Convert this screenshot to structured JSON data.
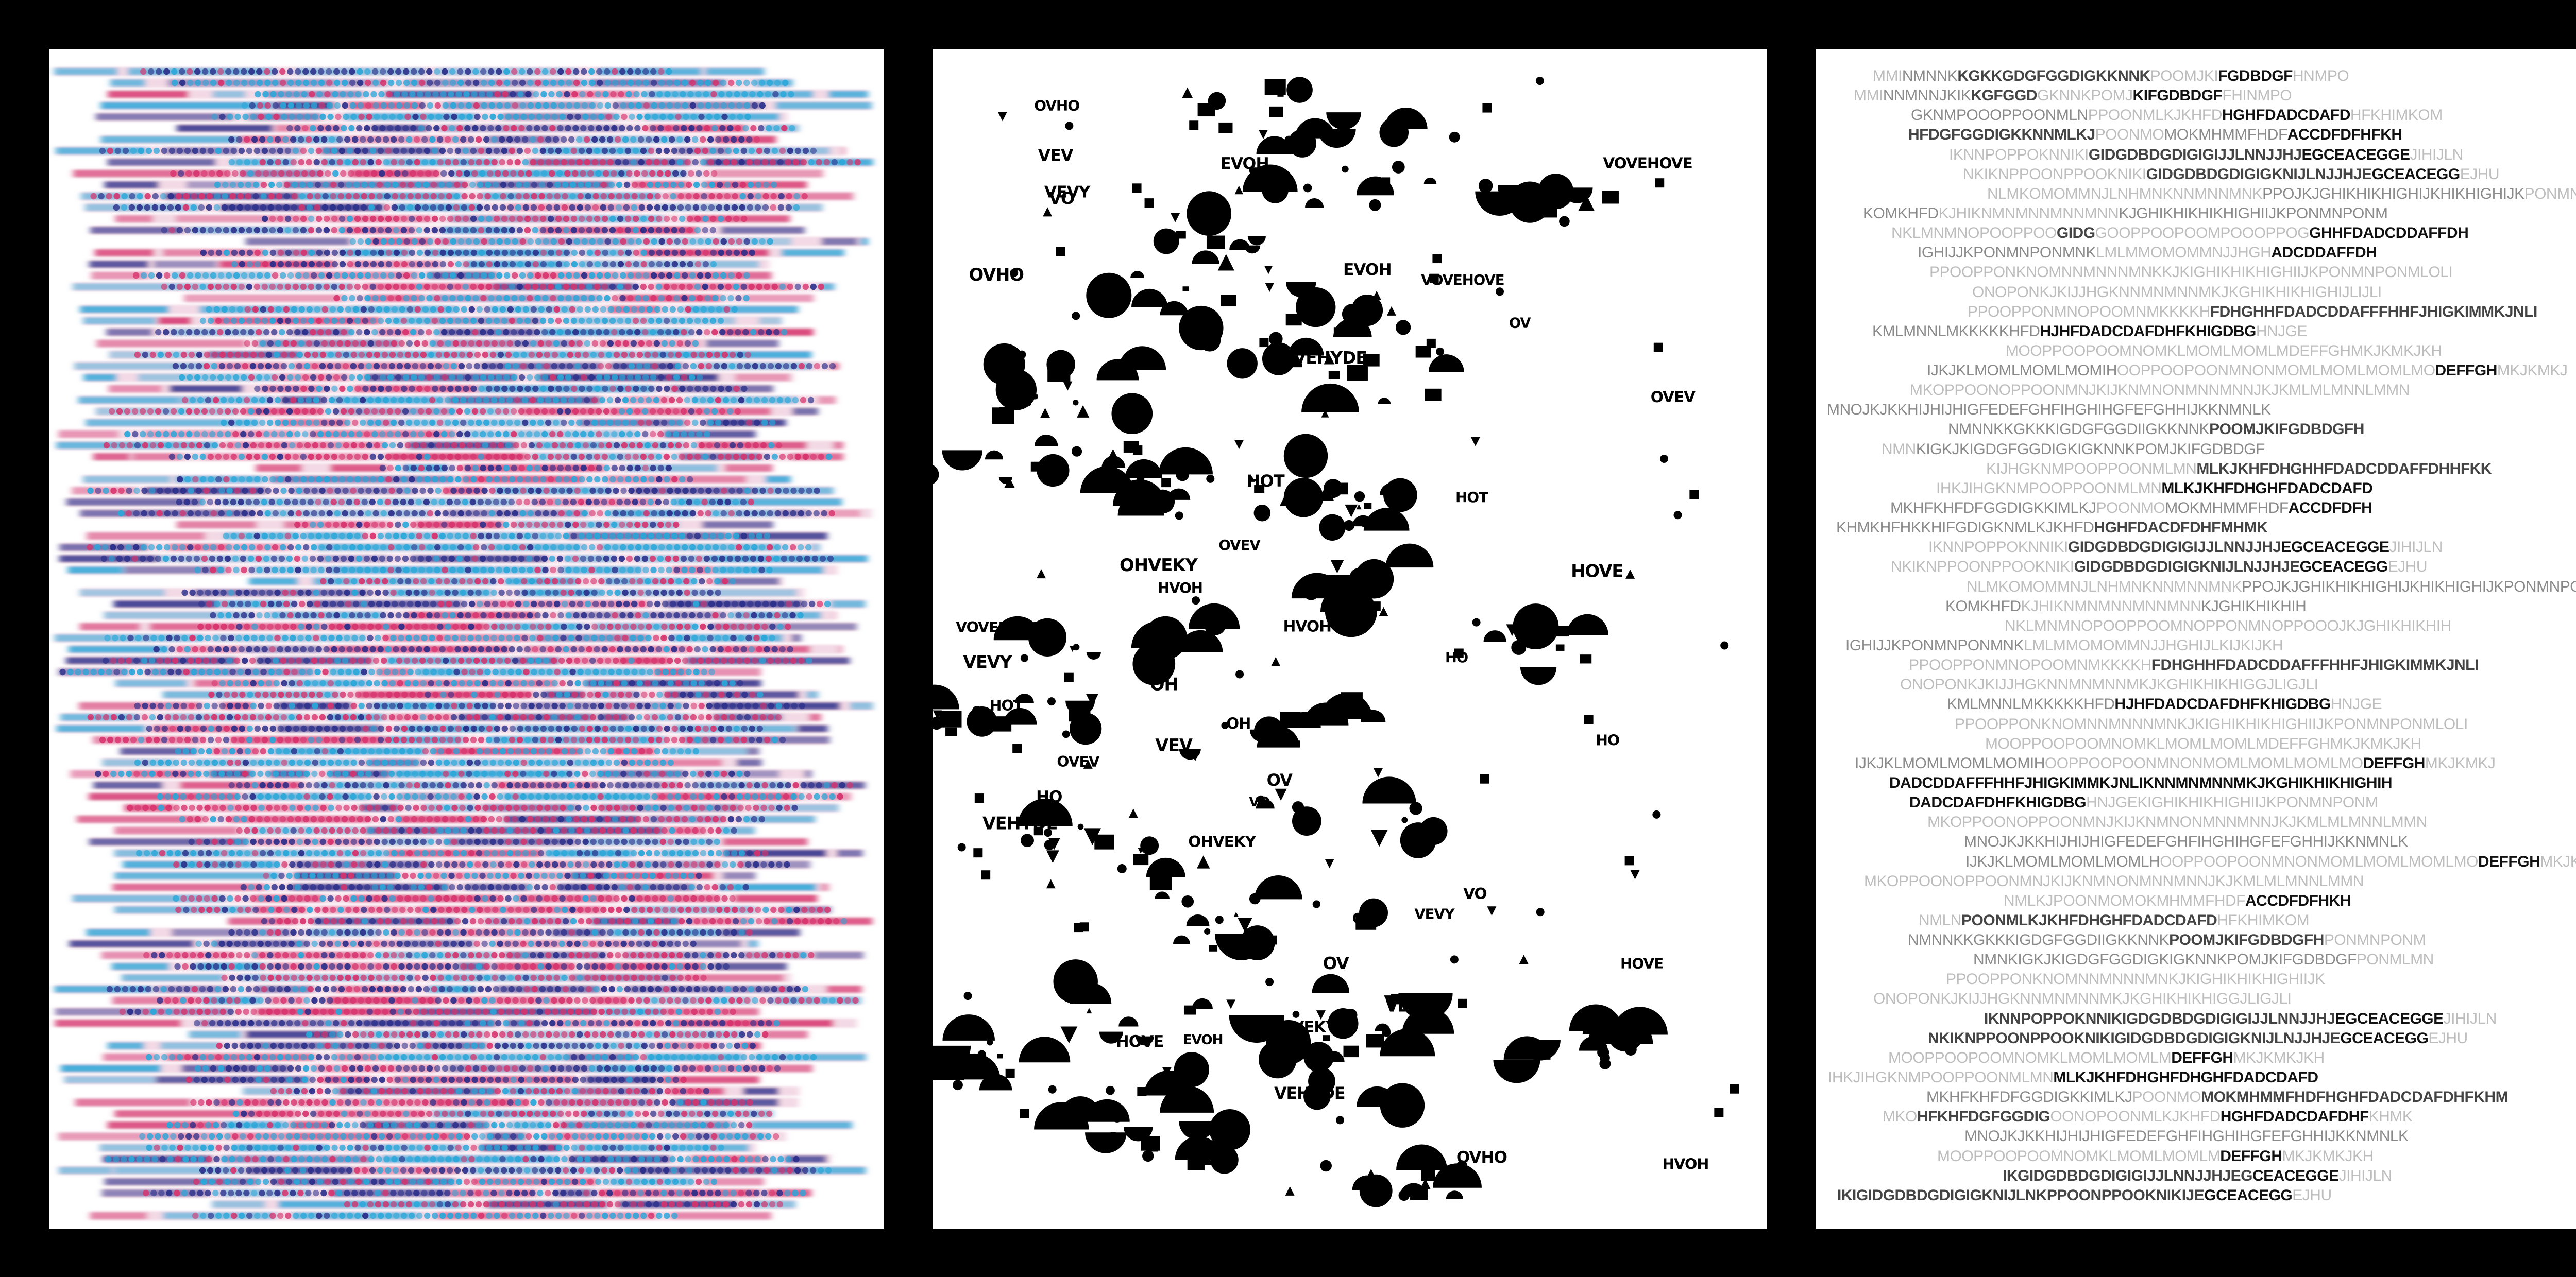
{
  "artwork": {
    "background_color": "#000000",
    "panel_color": "#ffffff",
    "panels": [
      {
        "id": "stripes",
        "description_colors": [
          "#2b2f8a",
          "#d7336d",
          "#2aa7d9",
          "#e9b9cf"
        ]
      },
      {
        "id": "shapes",
        "ink_color": "#000000",
        "glyph_fragments": [
          "OHVEKY",
          "VEV",
          "HOT",
          "HO",
          "OH",
          "VOVEHOVE",
          "OVHO",
          "OV",
          "VO",
          "HOVE",
          "VEHYDE",
          "OVEV",
          "HVOH",
          "VEVY",
          "EVOH"
        ]
      },
      {
        "id": "letters",
        "ink_color": "#1a1a1a",
        "lines": [
          [
            {
              "t": "MMI",
              "w": "light"
            },
            {
              "t": "NMNNK",
              "w": "mid"
            },
            {
              "t": "KGKKGDGFGGDIGKKNNK",
              "w": "semi"
            },
            {
              "t": "POOMJKI",
              "w": "light"
            },
            {
              "t": "FGDBDGF",
              "w": "bold"
            },
            {
              "t": "HNMPO",
              "w": "light"
            }
          ],
          [
            {
              "t": "MMI",
              "w": "light"
            },
            {
              "t": "NNMNNJKIK",
              "w": "mid"
            },
            {
              "t": "KGFGGD",
              "w": "semi"
            },
            {
              "t": "GKNNKPOMJ",
              "w": "light"
            },
            {
              "t": "KIFGDBDGF",
              "w": "bold"
            },
            {
              "t": "FHINMPO",
              "w": "light"
            }
          ],
          [
            {
              "t": "GKNMPOOOPPOONMLN",
              "w": "mid"
            },
            {
              "t": "PPOONMLKJKHFD",
              "w": "light"
            },
            {
              "t": "HGHFDADCDAFD",
              "w": "bold"
            },
            {
              "t": "HFKHIMKOM",
              "w": "light"
            }
          ],
          [
            {
              "t": "HFDGFGGDIGKKNNMLKJ",
              "w": "semi"
            },
            {
              "t": "POONMO",
              "w": "light"
            },
            {
              "t": "MOKMHMMFHDF",
              "w": "mid"
            },
            {
              "t": "ACCDFDFHFKH",
              "w": "bold"
            }
          ],
          [
            {
              "t": "IKNNPOPPOKNNIKI",
              "w": "light"
            },
            {
              "t": "GIDGDBDGDIGIGIJJLNNJJHJ",
              "w": "semi"
            },
            {
              "t": "EGCEACEGGE",
              "w": "bold"
            },
            {
              "t": "JIHIJLN",
              "w": "light"
            }
          ],
          [
            {
              "t": "NKIKNPPOONPPOOKNIKI",
              "w": "light"
            },
            {
              "t": "GIDGDBDGDIGIGKNIJLNJJHJE",
              "w": "semi"
            },
            {
              "t": "GCEACEGG",
              "w": "bold"
            },
            {
              "t": "EJHU",
              "w": "light"
            }
          ],
          [
            {
              "t": "NLMKOMOMMNJLNHMNKNNMNNMNK",
              "w": "light"
            },
            {
              "t": "PPOJKJGHIKHIKHIGHIJKHIKHIGHIJK",
              "w": "mid"
            },
            {
              "t": "PONMNPONM",
              "w": "light"
            }
          ],
          [
            {
              "t": "KOMKHFD",
              "w": "mid"
            },
            {
              "t": "KJHI",
              "w": "light"
            },
            {
              "t": "KNMNMNNMNNMNN",
              "w": "light"
            },
            {
              "t": "KJGHIKHIKHIKHIGHIIJKPONMNPONM",
              "w": "mid"
            }
          ],
          [
            {
              "t": "NKLMNMNOPOOPPOO",
              "w": "light"
            },
            {
              "t": "GIDG",
              "w": "semi"
            },
            {
              "t": "GOOPPOOPOOMPOOOPPOG",
              "w": "light"
            },
            {
              "t": "GHHFDADCDDAFFDH",
              "w": "bold"
            }
          ],
          [
            {
              "t": "IGHIJJKPONMNPONMNK",
              "w": "mid"
            },
            {
              "t": "LMLMMOMOMMNJJHGH",
              "w": "light"
            },
            {
              "t": "ADCDDAFFDH",
              "w": "bold"
            }
          ],
          [
            {
              "t": "PPOOPPONKNOMNNMNNNMNK",
              "w": "light"
            },
            {
              "t": "KJKIGHIKHIKHIGHIIJKPONMNPONMLOLI",
              "w": "light"
            }
          ],
          [
            {
              "t": "ONOPONKJKIJJHG",
              "w": "light"
            },
            {
              "t": "KNNMNMNNMKJKGHIKHIKHIGHIJLIJLI",
              "w": "light"
            }
          ],
          [
            {
              "t": "PPOOPPONMNOPOOMNMKKKKH",
              "w": "light"
            },
            {
              "t": "FDHGHHFDADCDDAFFFHHFJHIGKIMMKJNLI",
              "w": "semi"
            }
          ],
          [
            {
              "t": "KMLMNNLMKKKKKHFD",
              "w": "mid"
            },
            {
              "t": "HJHFDADCDAFDHFKHIGDBG",
              "w": "bold"
            },
            {
              "t": "HNJGE",
              "w": "light"
            }
          ],
          [
            {
              "t": "MOOPPOOPOOMNOMKLMOMLMOMLMDEFFGHMKJKMKJKH",
              "w": "light"
            }
          ],
          [
            {
              "t": "IJKJKLMOMLMOMLMOMIH",
              "w": "mid"
            },
            {
              "t": "OOPPOOPOONMNONMOMLMOMLMOMLMO",
              "w": "light"
            },
            {
              "t": "DEFFGH",
              "w": "bold"
            },
            {
              "t": "MKJKMKJ",
              "w": "light"
            }
          ],
          [
            {
              "t": "MKOPPOONOPPOONMNJKIJKNMNONMNNMNNJKJKMLMLMNNLMMN",
              "w": "light"
            }
          ],
          [
            {
              "t": "MNOJKJKK",
              "w": "mid"
            },
            {
              "t": "HIJHIJHIGFEDEFGHFIHGHIHGFEFGHHIJKKNMNLK",
              "w": "mid"
            }
          ],
          [
            {
              "t": "NMNNKKGKKKIGDGFGGDIIGKKNNK",
              "w": "mid"
            },
            {
              "t": "POOMJKIFGDBDGFH",
              "w": "semi"
            }
          ],
          [
            {
              "t": "NMN",
              "w": "light"
            },
            {
              "t": "KIGKJKIGDGFGGDIGKIGKNNKPOMJKIFGDBDGF",
              "w": "mid"
            }
          ],
          [
            {
              "t": "KIJHGKNMPOOPPOONMLMN",
              "w": "light"
            },
            {
              "t": "MLKJKHFDHGHHFDADCDDAFFDHHFKK",
              "w": "semi"
            }
          ],
          [
            {
              "t": "IHKJIHGKNMPOOPPOONMLMN",
              "w": "light"
            },
            {
              "t": "MLKJKHFDHGHFDADCDAFD",
              "w": "bold"
            }
          ],
          [
            {
              "t": "MKHFKHFDFGGDIGKKIMLKJ",
              "w": "mid"
            },
            {
              "t": "POONMO",
              "w": "light"
            },
            {
              "t": "MOKMHMMFHDF",
              "w": "mid"
            },
            {
              "t": "ACCDFDFH",
              "w": "bold"
            }
          ],
          [
            {
              "t": "KHMKHFHKKHIFGDIGKNMLKJKHFD",
              "w": "mid"
            },
            {
              "t": "HGHFDACDFDHFMHMK",
              "w": "semi"
            }
          ],
          [
            {
              "t": "IKNNPOPPOKNNIKI",
              "w": "light"
            },
            {
              "t": "GIDGDBDGDIGIGIJJLNNJJHJ",
              "w": "semi"
            },
            {
              "t": "EGCEACEGGE",
              "w": "bold"
            },
            {
              "t": "JIHIJLN",
              "w": "light"
            }
          ],
          [
            {
              "t": "NKIKNPPOONPPOOKNIKI",
              "w": "light"
            },
            {
              "t": "GIDGDBDGDIGIGKNIJLNJJHJE",
              "w": "semi"
            },
            {
              "t": "GCEACEGG",
              "w": "bold"
            },
            {
              "t": "EJHU",
              "w": "light"
            }
          ],
          [
            {
              "t": "NLMKOMOMMNJLNHMNKNNMNNMNK",
              "w": "light"
            },
            {
              "t": "PPOJKJGHIKHIKHIGHIJKHIKHIGHIJKPONMNPONM",
              "w": "mid"
            }
          ],
          [
            {
              "t": "KOMKHFD",
              "w": "mid"
            },
            {
              "t": "KJHI",
              "w": "light"
            },
            {
              "t": "KNMNMNNMNNMNN",
              "w": "light"
            },
            {
              "t": "KJGHIKHIKHIH",
              "w": "mid"
            }
          ],
          [
            {
              "t": "NKLMNMNOPOOPPOOMNOPPONMNOPPOOOJKJGHIKHIKHIH",
              "w": "light"
            }
          ],
          [
            {
              "t": "IGHIJJKPONMNPONMNK",
              "w": "mid"
            },
            {
              "t": "LMLMMOMOMMNJJHGHIJLKIJKIJKH",
              "w": "light"
            }
          ],
          [
            {
              "t": "PPOOPPONMNOPOOMNMKKKKH",
              "w": "light"
            },
            {
              "t": "FDHGHHFDADCDDAFFFHHFJHIGKIMMKJNLI",
              "w": "semi"
            }
          ],
          [
            {
              "t": "ONOPONKJKIJJHG",
              "w": "light"
            },
            {
              "t": "KNNMNMNNMKJKGHIKHIKHIG",
              "w": "light"
            },
            {
              "t": "GJLIGJLI",
              "w": "light"
            }
          ],
          [
            {
              "t": "KMLMNNLMKKKKKHFD",
              "w": "mid"
            },
            {
              "t": "HJHFDADCDAFDHFKHIGDBG",
              "w": "bold"
            },
            {
              "t": "HNJGE",
              "w": "light"
            }
          ],
          [
            {
              "t": "PPOOPPONKNOMNNMNNNMN",
              "w": "light"
            },
            {
              "t": "KJKIGHIKHIKHIGHIIJKPONMNPONMLOLI",
              "w": "light"
            }
          ],
          [
            {
              "t": "MOOPPOOPOOMNOMKLMOMLMOMLMDEFFGHMKJKMKJKH",
              "w": "light"
            }
          ],
          [
            {
              "t": "IJKJKLMOMLMOMLMOMIH",
              "w": "mid"
            },
            {
              "t": "OOPPOOPOONMNONMOMLMOMLMOMLMO",
              "w": "light"
            },
            {
              "t": "DEFFGH",
              "w": "bold"
            },
            {
              "t": "MKJKMKJ",
              "w": "light"
            }
          ],
          [
            {
              "t": "DADCDDAFFFHHFJHIGKIMMKJNLIKNNMNMNNMKJKGHIKHIKHIGHIH",
              "w": "bold"
            }
          ],
          [
            {
              "t": "DADCDAFDHFKHIGDBG",
              "w": "bold"
            },
            {
              "t": "HNJGE",
              "w": "light"
            },
            {
              "t": "KIGHIKHIKHIGHIIJKPONMNPONM",
              "w": "light"
            }
          ],
          [
            {
              "t": "MKOPPOONOPPOONMNJKIJKNMNONMNNMNNJKJKMLMLMNNLMMN",
              "w": "light"
            }
          ],
          [
            {
              "t": "MNOJKJKK",
              "w": "mid"
            },
            {
              "t": "HIJHIJHIGFEDEFGHFIHGHIHGFEFGHHIJKKNMNLK",
              "w": "mid"
            }
          ],
          [
            {
              "t": "IJKJKLMOMLMOMLMOMLH",
              "w": "mid"
            },
            {
              "t": "OOPPOOPOONMNONMOMLMOMLMOMLMO",
              "w": "light"
            },
            {
              "t": "DEFFGH",
              "w": "bold"
            },
            {
              "t": "MKJKMKJ",
              "w": "light"
            }
          ],
          [
            {
              "t": "MKOPPOO",
              "w": "light"
            },
            {
              "t": "NOPPOONMNJKIJKNMNONMNNMNNJKJKMLMLMNNLMMN",
              "w": "light"
            }
          ],
          [
            {
              "t": "NMLKJPOONMOMOKMHMMFHDF",
              "w": "light"
            },
            {
              "t": "ACCDFDFHKH",
              "w": "bold"
            }
          ],
          [
            {
              "t": "NMLN",
              "w": "light"
            },
            {
              "t": "POONMLKJKHFDHGHFDADCDAFD",
              "w": "semi"
            },
            {
              "t": "HFKHIMKOM",
              "w": "light"
            }
          ],
          [
            {
              "t": "NMNNKKGKKKIGDGFGGDIIGKKNNK",
              "w": "mid"
            },
            {
              "t": "POOMJKIFGDBDGFH",
              "w": "semi"
            },
            {
              "t": "PONMNPONM",
              "w": "light"
            }
          ],
          [
            {
              "t": "NMNKIGKJKIGDGFGGDIGKIGKNNKPOMJKIFGDBDGF",
              "w": "mid"
            },
            {
              "t": "PONMLMN",
              "w": "light"
            }
          ],
          [
            {
              "t": "PPOOPPONKNOMNNMNNNMNKJKIG",
              "w": "light"
            },
            {
              "t": "HIKHIKHIGHIIJK",
              "w": "light"
            }
          ],
          [
            {
              "t": "ONOPONKJKIJJHG",
              "w": "light"
            },
            {
              "t": "KNNMNMNNMKJKGHIKHIKHIG",
              "w": "light"
            },
            {
              "t": "GJLIGJLI",
              "w": "light"
            }
          ],
          [
            {
              "t": "IKNNPOPPOKNNIKIGDGDBDGDIGIGIJJLNNJJHJ",
              "w": "semi"
            },
            {
              "t": "EGCEACEGGE",
              "w": "bold"
            },
            {
              "t": "JIHIJLN",
              "w": "light"
            }
          ],
          [
            {
              "t": "NKIKNPPOONPPOOKNIKIGIDGDBDGDIGIGKNIJLNJJHJE",
              "w": "semi"
            },
            {
              "t": "GCEACEGG",
              "w": "bold"
            },
            {
              "t": "EJHU",
              "w": "light"
            }
          ],
          [
            {
              "t": "MOOPPOOPOOMNOMKLMOMLMOMLM",
              "w": "light"
            },
            {
              "t": "DEFFGH",
              "w": "bold"
            },
            {
              "t": "MKJKMKJKH",
              "w": "light"
            }
          ],
          [
            {
              "t": "IHKJIHGKNMPOOPPOONMLMN",
              "w": "light"
            },
            {
              "t": "MLKJKHFDHGHFDHGHFDADCDAFD",
              "w": "bold"
            }
          ],
          [
            {
              "t": "MKHFKHFDFGGDIGKKIMLKJ",
              "w": "mid"
            },
            {
              "t": "POONMO",
              "w": "light"
            },
            {
              "t": "MOKMHMMFHDFHGHFDADCDAFDHFKHM",
              "w": "semi"
            }
          ],
          [
            {
              "t": "MKO",
              "w": "light"
            },
            {
              "t": "HFKHFDGFGGDIG",
              "w": "semi"
            },
            {
              "t": "OONOPOONMLKJKHFD",
              "w": "light"
            },
            {
              "t": "HGHFDADCDAFDHF",
              "w": "bold"
            },
            {
              "t": "KHMK",
              "w": "light"
            }
          ],
          [
            {
              "t": "MNOJKJKK",
              "w": "mid"
            },
            {
              "t": "HIJHIJHIGFEDEFGHFIHGHIHGFEFGHHIJKKNMNLK",
              "w": "mid"
            }
          ],
          [
            {
              "t": "MOOPPOOPOOMNOMKLMOMLMOMLM",
              "w": "light"
            },
            {
              "t": "DEFFGH",
              "w": "bold"
            },
            {
              "t": "MKJKMKJKH",
              "w": "light"
            }
          ],
          [
            {
              "t": "IKGIDGDBDGDIGIGIJJLNNJJHJEG",
              "w": "semi"
            },
            {
              "t": "CEACEGGE",
              "w": "bold"
            },
            {
              "t": "JIHIJLN",
              "w": "light"
            }
          ],
          [
            {
              "t": "IKIGIDGDBDGDIGIGKNIJLNKPPOONPPOOKNIKIJE",
              "w": "semi"
            },
            {
              "t": "GCEACEGG",
              "w": "bold"
            },
            {
              "t": "EJHU",
              "w": "light"
            }
          ]
        ]
      }
    ]
  }
}
